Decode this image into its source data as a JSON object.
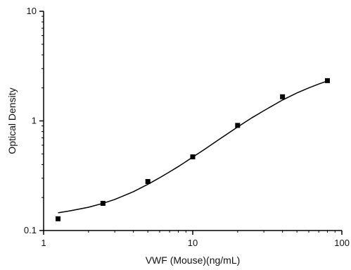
{
  "chart_data": {
    "type": "scatter",
    "title": "",
    "xlabel": "VWF (Mouse)(ng/mL)",
    "ylabel": "Optical Density",
    "x_scale": "log",
    "y_scale": "log",
    "xlim": [
      1,
      100
    ],
    "ylim": [
      0.1,
      10
    ],
    "x_ticks": [
      1,
      10,
      100
    ],
    "y_ticks": [
      0.1,
      1,
      10
    ],
    "x_tick_labels": [
      "1",
      "10",
      "100"
    ],
    "y_tick_labels": [
      "0.1",
      "1",
      "10"
    ],
    "grid": false,
    "legend": "none",
    "series": [
      {
        "marker": "square",
        "x": [
          1.25,
          2.5,
          5,
          10,
          20,
          40,
          80
        ],
        "y": [
          0.128,
          0.177,
          0.28,
          0.47,
          0.91,
          1.66,
          2.33
        ]
      }
    ],
    "fit_curve": {
      "style": "line",
      "x": [
        1.25,
        1.5,
        2,
        2.5,
        3,
        4,
        5,
        6,
        7,
        8,
        10,
        12,
        15,
        20,
        25,
        30,
        40,
        50,
        60,
        70,
        80
      ],
      "y": [
        0.145,
        0.151,
        0.163,
        0.177,
        0.192,
        0.226,
        0.264,
        0.303,
        0.343,
        0.383,
        0.467,
        0.55,
        0.677,
        0.88,
        1.07,
        1.24,
        1.55,
        1.8,
        2.0,
        2.17,
        2.31
      ]
    },
    "colors": {
      "axis": "#000000",
      "marker": "#000000",
      "curve": "#000000"
    }
  }
}
